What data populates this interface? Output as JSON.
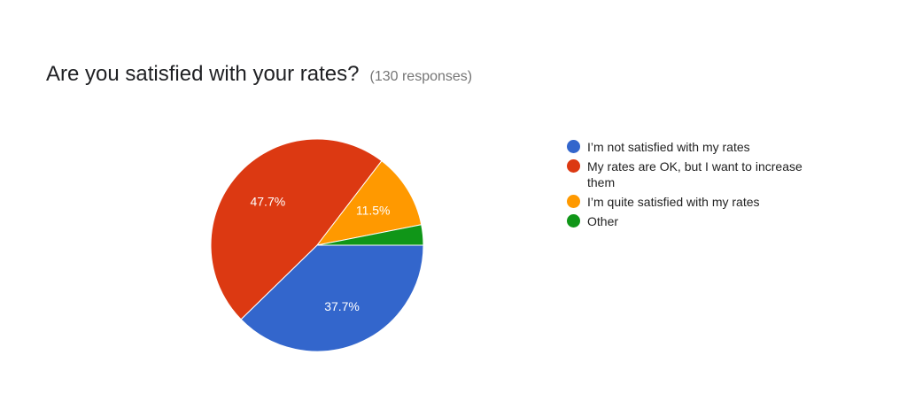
{
  "header": {
    "title": "Are you satisfied with your rates?",
    "responses": "(130 responses)"
  },
  "chart_data": {
    "type": "pie",
    "title": "Are you satisfied with your rates?",
    "slices": [
      {
        "label": "I’m not satisfied with my rates",
        "value": 37.7,
        "display": "37.7%",
        "color": "#3366cc"
      },
      {
        "label": "My rates are OK, but I want to increase them",
        "value": 47.7,
        "display": "47.7%",
        "color": "#dc3912"
      },
      {
        "label": "I’m quite satisfied with my rates",
        "value": 11.5,
        "display": "11.5%",
        "color": "#ff9900"
      },
      {
        "label": "Other",
        "value": 3.1,
        "display": "",
        "color": "#109618"
      }
    ],
    "legend_position": "right"
  }
}
